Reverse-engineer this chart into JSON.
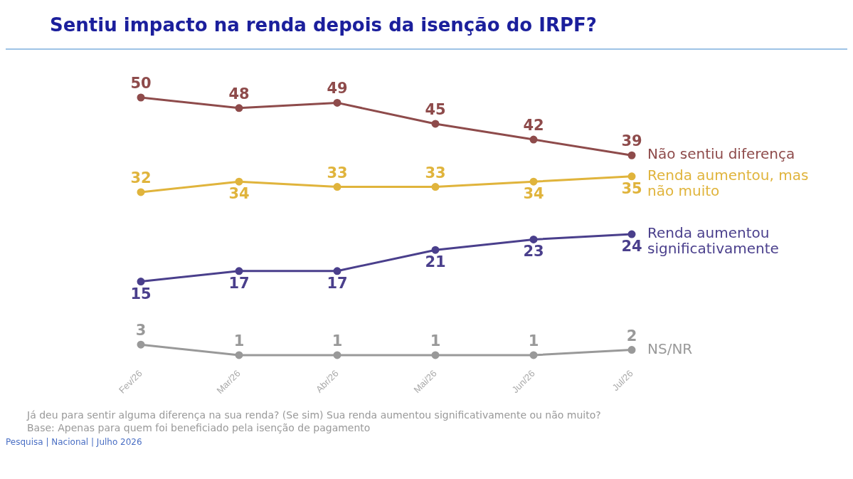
{
  "chart_data": {
    "type": "line",
    "title": "Sentiu impacto na renda depois da isenção do IRPF?",
    "categories": [
      "Fev/26",
      "Mar/26",
      "Abr/26",
      "Mai/26",
      "Jun/26",
      "Jul/26"
    ],
    "series": [
      {
        "name": "Não sentiu diferença",
        "color": "#8e4b4b",
        "values": [
          50,
          48,
          49,
          45,
          42,
          39
        ]
      },
      {
        "name": "Renda aumentou, mas não muito",
        "color": "#e0b43c",
        "values": [
          32,
          34,
          33,
          33,
          34,
          35
        ]
      },
      {
        "name": "Renda aumentou significativamente",
        "color": "#4a3f8c",
        "values": [
          15,
          17,
          17,
          21,
          23,
          24
        ]
      },
      {
        "name": "NS/NR",
        "color": "#999999",
        "values": [
          3,
          1,
          1,
          1,
          1,
          2
        ]
      }
    ],
    "data_labels": true,
    "legend": false,
    "grid": false,
    "marker": "circle",
    "line_style": "solid",
    "tick_labels": "x",
    "annotations": [
      "Já deu para sentir alguma diferença na sua renda? (Se sim) Sua renda aumentou significativamente ou não muito?",
      "Base: Apenas para quem foi beneficiado pela isenção de pagamento",
      "Pesquisa | Nacional | Julho 2026"
    ]
  }
}
